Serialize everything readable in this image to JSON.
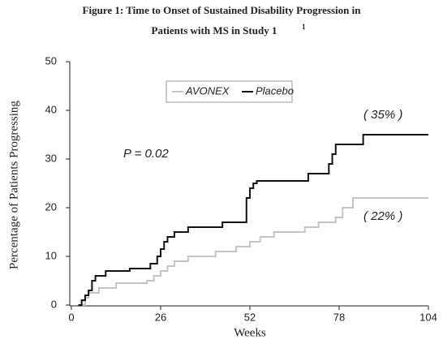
{
  "chart_data": {
    "type": "step",
    "title": [
      "Figure 1:  Time to Onset of Sustained Disability Progression in",
      "Patients with MS in Study 1"
    ],
    "title_superscript": "1",
    "xlabel": "Weeks",
    "ylabel": "Percentage of Patients Progressing",
    "xlim": [
      0,
      104
    ],
    "ylim": [
      0,
      50
    ],
    "xticks": [
      0,
      26,
      52,
      78,
      104
    ],
    "yticks": [
      0,
      10,
      20,
      30,
      40,
      50
    ],
    "grid": false,
    "series": [
      {
        "name": "AVONEX",
        "color": "#c4c4c4",
        "x": [
          3,
          4,
          5,
          8,
          13,
          22,
          24,
          26,
          28,
          30,
          34,
          42,
          48,
          52,
          55,
          59,
          68,
          72,
          77,
          79,
          82,
          104
        ],
        "values": [
          0,
          1.5,
          2.5,
          3.5,
          4.5,
          5,
          6,
          7,
          8,
          9,
          10,
          11,
          12,
          13,
          14,
          15,
          16,
          17,
          18,
          20,
          22,
          22
        ]
      },
      {
        "name": "Placebo",
        "color": "#111111",
        "x": [
          2,
          3,
          4,
          5,
          6,
          7,
          10,
          17,
          23,
          25,
          26,
          27,
          28,
          30,
          34,
          44,
          51,
          52,
          53,
          54,
          69,
          75,
          76,
          77,
          85,
          104
        ],
        "values": [
          0,
          1,
          2,
          3,
          5,
          6,
          7,
          7.5,
          8.5,
          10,
          11.5,
          13,
          14,
          15,
          16,
          17,
          22,
          24,
          25,
          25.5,
          27,
          29,
          31,
          33,
          35,
          35
        ]
      }
    ],
    "annotations": [
      "P = 0.02",
      "( 35% )",
      "( 22% )"
    ]
  }
}
